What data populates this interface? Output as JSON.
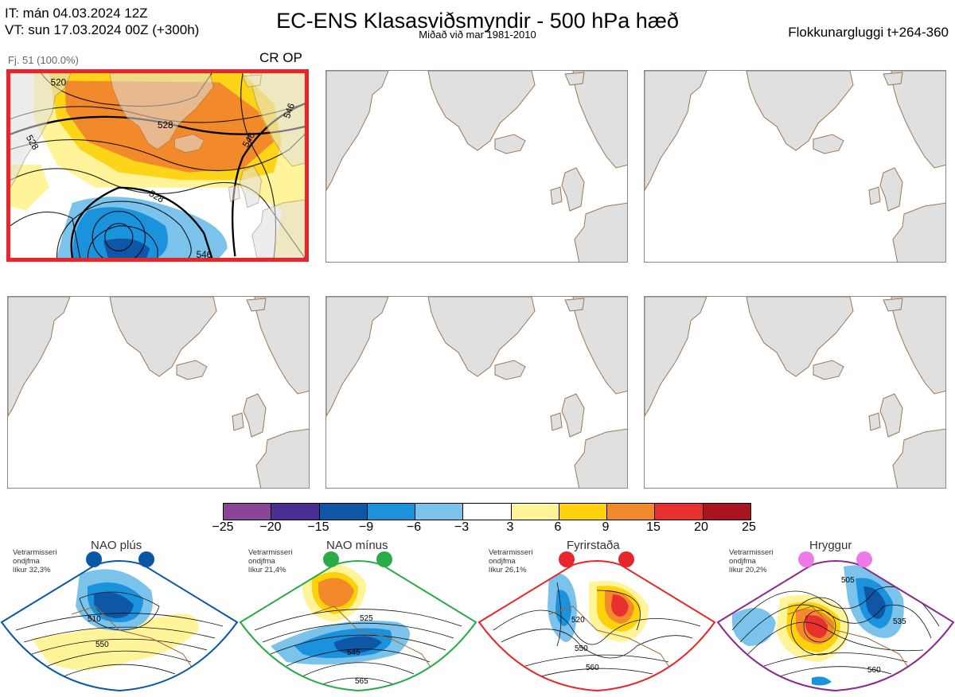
{
  "header": {
    "init_line": "IT: mán 04.03.2024 12Z",
    "valid_line": "VT: sun 17.03.2024 00Z  (+300h)",
    "title": "EC-ENS Klasasviðsmyndir - 500 hPa hæð",
    "subtitle": "Miðað við mar 1981-2010",
    "window": "Flokkunargluggi t+264-360"
  },
  "cluster": {
    "members": "Fj. 51 (100.0%)",
    "flags": "CR OP",
    "contour_labels": [
      "520",
      "528",
      "528",
      "528",
      "546",
      "546",
      "546"
    ]
  },
  "colorbar": {
    "ticks": [
      "−25",
      "−20",
      "−15",
      "−9",
      "−6",
      "−3",
      "3",
      "6",
      "9",
      "15",
      "20",
      "25"
    ],
    "colors": [
      "#8a4599",
      "#4a2f93",
      "#0d57a6",
      "#1b92dc",
      "#7cc3ec",
      "#ffffff",
      "#fff49a",
      "#fdd20a",
      "#f28a2b",
      "#e8302e",
      "#a9141e"
    ]
  },
  "regimes": [
    {
      "name": "NAO plús",
      "text1": "Vetrarmisseri",
      "text2": "ondjfma",
      "text3": "líkur 32,3%",
      "color": "#0a57a6",
      "dot": "#0a57a6",
      "labels": [
        "510",
        "550"
      ]
    },
    {
      "name": "NAO mínus",
      "text1": "Vetrarmisseri",
      "text2": "ondjfma",
      "text3": "líkur 21,4%",
      "color": "#2aab4a",
      "dot": "#2aab4a",
      "labels": [
        "525",
        "545",
        "565"
      ]
    },
    {
      "name": "Fyrirstaða",
      "text1": "Vetrarmisseri",
      "text2": "ondjfma",
      "text3": "líkur 26,1%",
      "color": "#e8252a",
      "dot": "#e8252a",
      "labels": [
        "520",
        "550",
        "560"
      ]
    },
    {
      "name": "Hryggur",
      "text1": "Vetrarmisseri",
      "text2": "ondjfma",
      "text3": "líkur 20,2%",
      "color": "#8b2a8e",
      "dot": "#ee7ae8",
      "labels": [
        "505",
        "535",
        "560"
      ]
    }
  ]
}
